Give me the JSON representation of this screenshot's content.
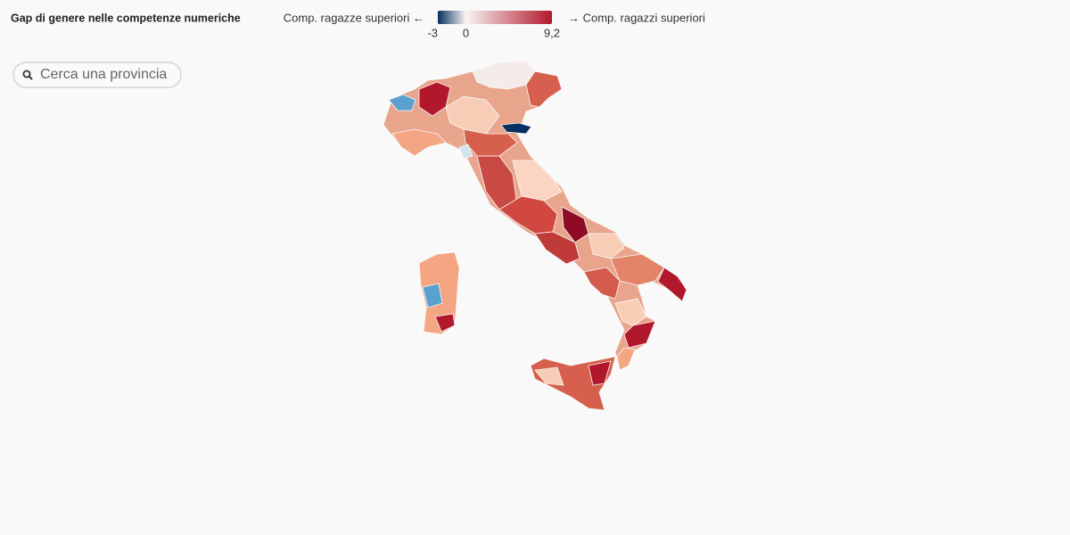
{
  "header": {
    "title": "Gap di genere nelle competenze numeriche"
  },
  "legend": {
    "left_label": "Comp. ragazze superiori ←",
    "right_label": "→ Comp. ragazzi superiori",
    "range": [
      -3,
      9.2
    ],
    "ticks": [
      -3,
      0,
      {
        "value": 9.2,
        "label": "9,2"
      }
    ],
    "colors": [
      "#053061",
      "#f7f4f2",
      "#b2182b"
    ]
  },
  "search": {
    "placeholder": "Cerca una provincia"
  }
}
